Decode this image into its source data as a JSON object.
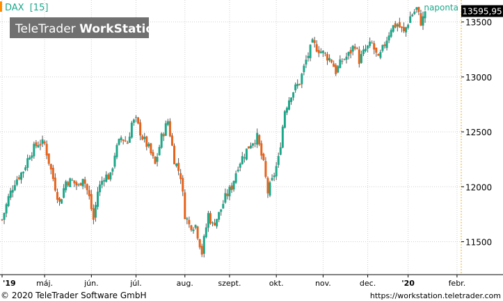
{
  "instrument": {
    "symbol": "DAX",
    "code": "[15]",
    "accent_color": "#ff8c00"
  },
  "brand": {
    "prefix": "TeleTrader ",
    "suffix": "WorkStation"
  },
  "period_label": "naponta",
  "footer": {
    "copyright": "© 2020 TeleTrader Software GmbH",
    "url": "https://workstation.teletrader.com"
  },
  "colors": {
    "up": "#1aa88a",
    "down": "#e8621a",
    "wick": "#555555",
    "grid": "#d0d0d0",
    "last_price_bg": "#000000",
    "axis_line": "#e0b030"
  },
  "chart_data": {
    "type": "candlestick",
    "title": "DAX [15]",
    "ylim": [
      11200,
      13700
    ],
    "y_ticks": [
      11500,
      12000,
      12500,
      13000,
      13500
    ],
    "y_tick_labels": [
      "11500",
      "12000",
      "12500",
      "13000",
      "13500"
    ],
    "x_labels": [
      "'19",
      "máj.",
      "jún.",
      "júl.",
      "aug.",
      "szept.",
      "okt.",
      "nov.",
      "dec.",
      "'20",
      "febr."
    ],
    "x_label_days": [
      0,
      20,
      42,
      63,
      86,
      107,
      129,
      151,
      172,
      191,
      214
    ],
    "last_price": 13595.95,
    "last_price_label": "13595,95",
    "total_days": 216,
    "candle_count": 200,
    "anchors": [
      [
        0,
        11700
      ],
      [
        3,
        11900
      ],
      [
        6,
        12050
      ],
      [
        10,
        12150
      ],
      [
        13,
        12300
      ],
      [
        17,
        12400
      ],
      [
        20,
        12390
      ],
      [
        23,
        12150
      ],
      [
        27,
        11850
      ],
      [
        30,
        12050
      ],
      [
        33,
        12050
      ],
      [
        36,
        12000
      ],
      [
        38,
        12100
      ],
      [
        41,
        11900
      ],
      [
        43,
        11700
      ],
      [
        45,
        11960
      ],
      [
        48,
        12100
      ],
      [
        51,
        12090
      ],
      [
        53,
        12300
      ],
      [
        56,
        12450
      ],
      [
        59,
        12400
      ],
      [
        61,
        12580
      ],
      [
        63,
        12600
      ],
      [
        66,
        12450
      ],
      [
        69,
        12350
      ],
      [
        72,
        12200
      ],
      [
        75,
        12450
      ],
      [
        78,
        12600
      ],
      [
        81,
        12250
      ],
      [
        84,
        12100
      ],
      [
        86,
        11750
      ],
      [
        88,
        11650
      ],
      [
        91,
        11650
      ],
      [
        94,
        11400
      ],
      [
        97,
        11750
      ],
      [
        99,
        11650
      ],
      [
        102,
        11750
      ],
      [
        105,
        11900
      ],
      [
        108,
        12000
      ],
      [
        111,
        12200
      ],
      [
        114,
        12300
      ],
      [
        117,
        12400
      ],
      [
        120,
        12450
      ],
      [
        123,
        12200
      ],
      [
        125,
        11950
      ],
      [
        127,
        12050
      ],
      [
        130,
        12250
      ],
      [
        133,
        12700
      ],
      [
        136,
        12850
      ],
      [
        140,
        12950
      ],
      [
        143,
        13150
      ],
      [
        146,
        13300
      ],
      [
        149,
        13250
      ],
      [
        152,
        13200
      ],
      [
        155,
        13150
      ],
      [
        157,
        13050
      ],
      [
        160,
        13150
      ],
      [
        163,
        13200
      ],
      [
        166,
        13300
      ],
      [
        168,
        13150
      ],
      [
        171,
        13250
      ],
      [
        174,
        13300
      ],
      [
        177,
        13150
      ],
      [
        180,
        13300
      ],
      [
        183,
        13450
      ],
      [
        186,
        13480
      ],
      [
        189,
        13400
      ],
      [
        192,
        13550
      ],
      [
        195,
        13620
      ],
      [
        197,
        13500
      ],
      [
        199,
        13560
      ]
    ]
  }
}
